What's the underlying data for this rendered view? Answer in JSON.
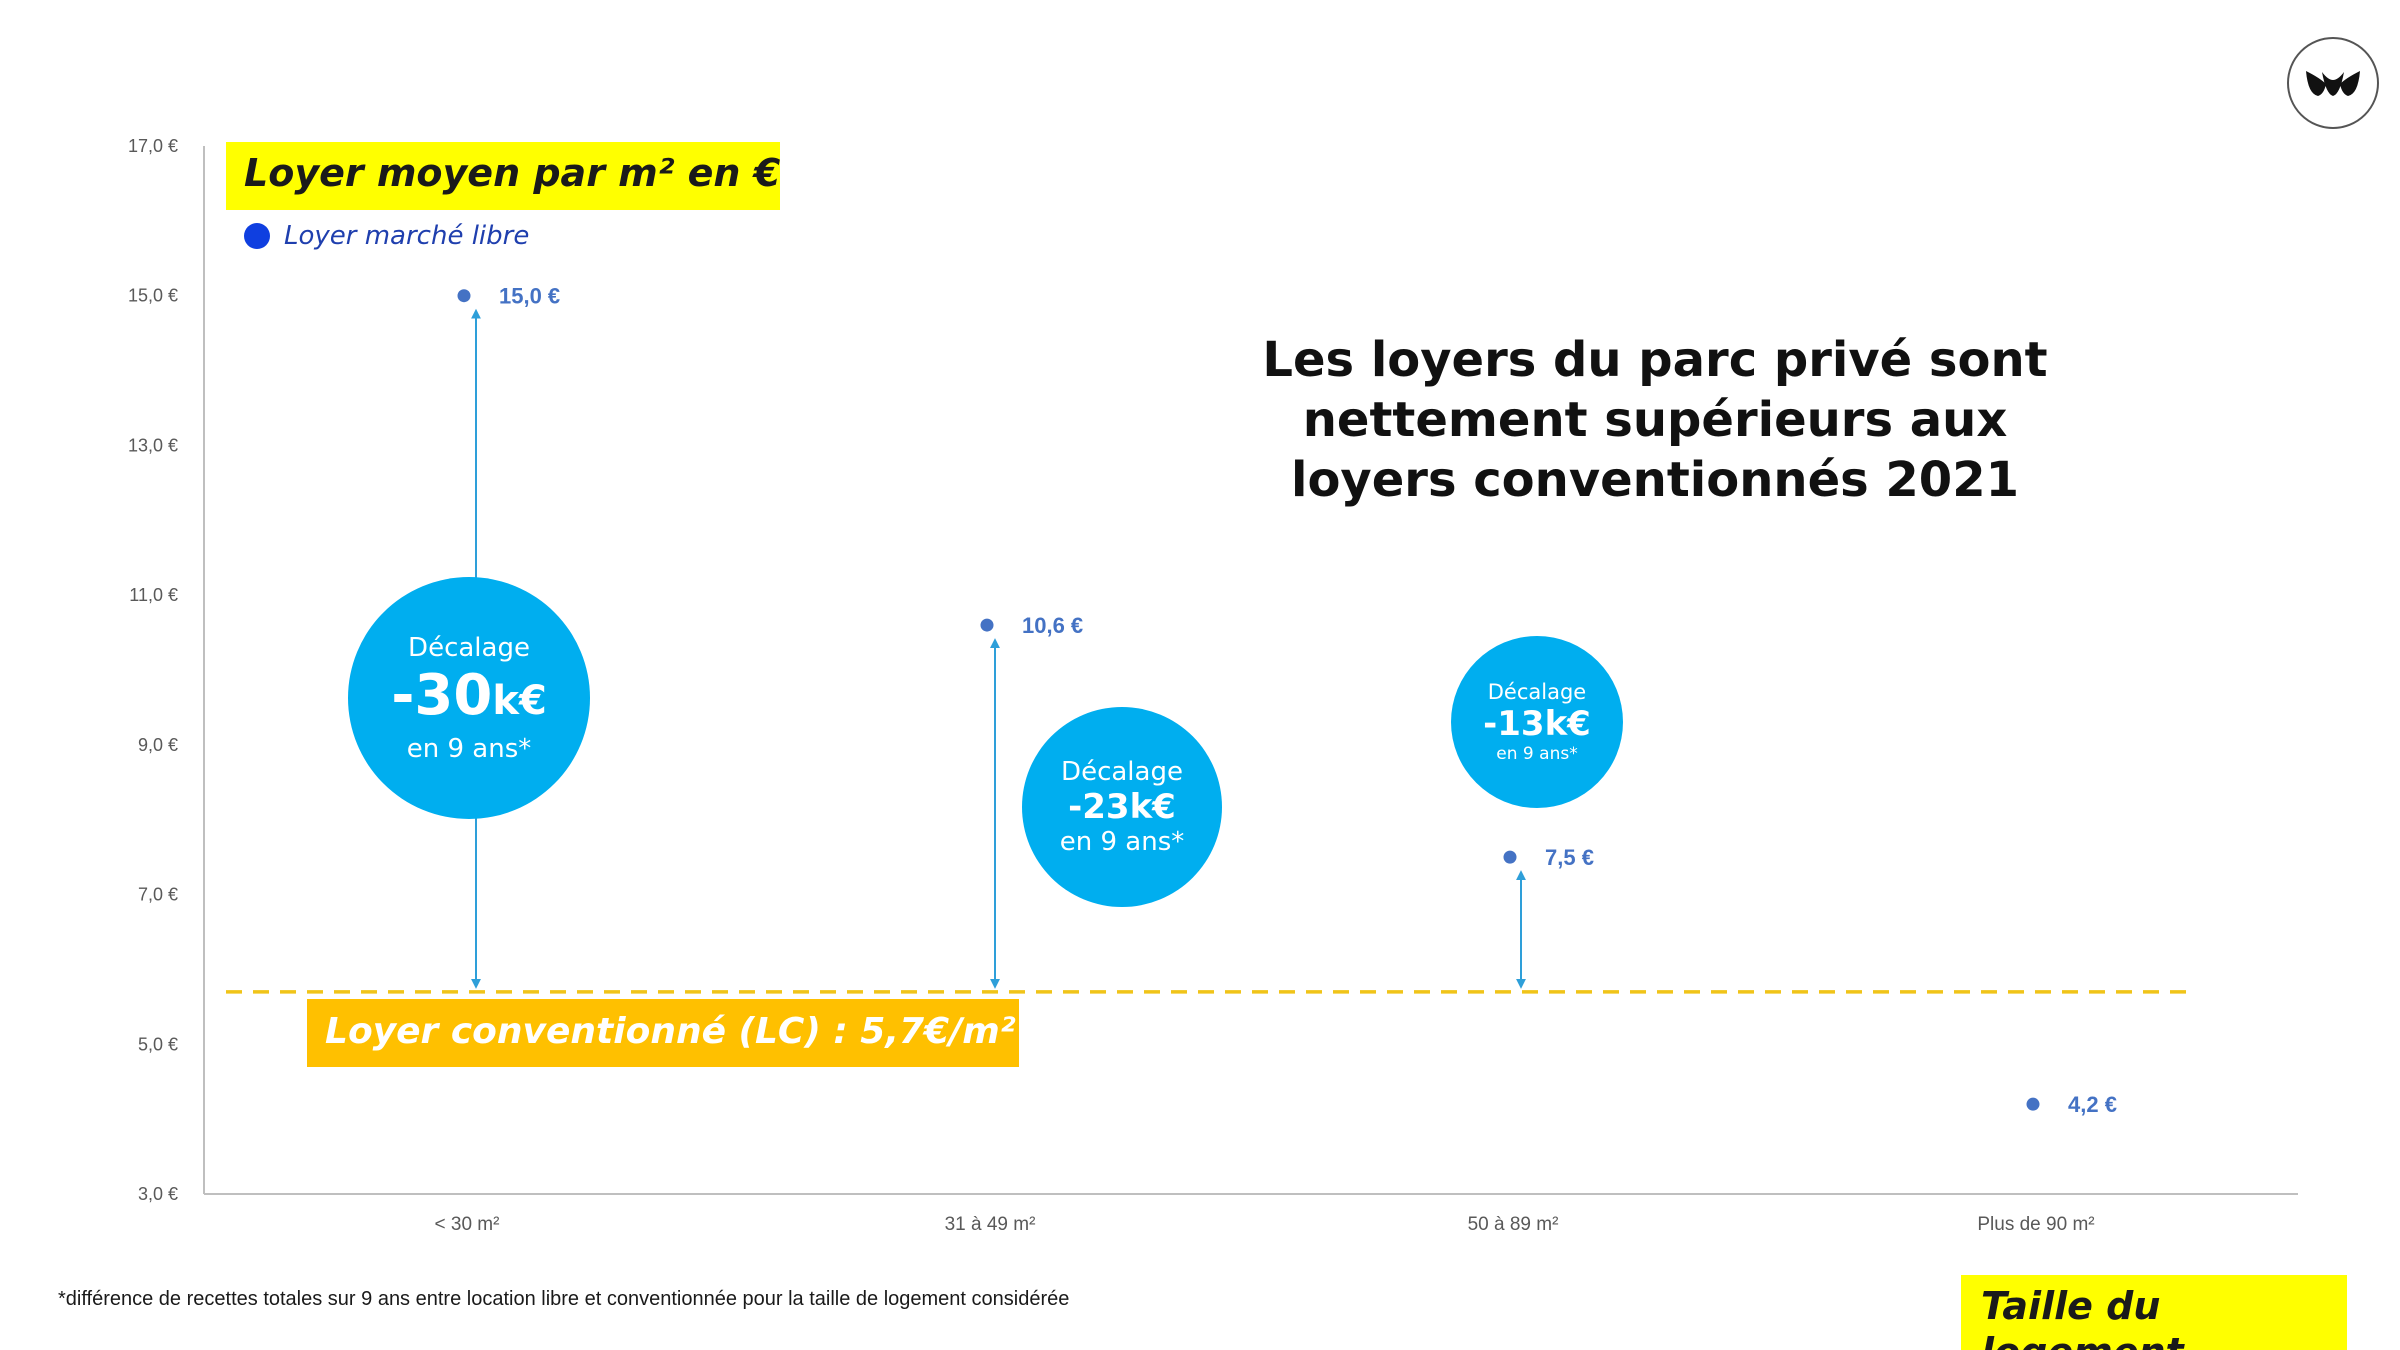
{
  "title": "Les loyers du parc privé sont nettement supérieurs aux loyers conventionnés 2021",
  "title_lines": [
    "Les loyers du parc privé sont",
    "nettement supérieurs aux",
    "loyers conventionnés 2021"
  ],
  "y_axis_box": "Loyer moyen par m² en €",
  "x_axis_box": "Taille du logement",
  "legend": {
    "label": "Loyer marché libre",
    "color": "#0f3fe0"
  },
  "lc_label": "Loyer conventionné (LC) : 5,7€/m²",
  "bubbles": [
    {
      "label": "Décalage",
      "value": "-30",
      "unit": "k€",
      "sub": "en 9 ans*"
    },
    {
      "label": "Décalage",
      "value": "-23k€",
      "sub": "en 9 ans*"
    },
    {
      "label": "Décalage",
      "value": "-13k€",
      "sub": "en 9 ans*"
    }
  ],
  "footnote": "*différence de recettes totales sur 9 ans entre location libre et conventionnée pour la taille de logement considérée",
  "logo": {
    "icon": "tulip-logo-icon"
  },
  "colors": {
    "accent_blue": "#00aeef",
    "point_blue": "#4472c4",
    "lc_orange": "#ffc000",
    "lc_line": "#f0c419",
    "highlight_yellow": "#ffff00"
  },
  "chart_data": {
    "type": "scatter",
    "categories": [
      "< 30 m²",
      "31 à 49 m²",
      "50 à 89 m²",
      "Plus de 90 m²"
    ],
    "series": [
      {
        "name": "Loyer marché libre",
        "values": [
          15.0,
          10.6,
          7.5,
          4.2
        ],
        "labels": [
          "15,0 €",
          "10,6 €",
          "7,5 €",
          "4,2 €"
        ]
      }
    ],
    "reference_line": {
      "name": "Loyer conventionné (LC)",
      "value": 5.7
    },
    "ylim": [
      3.0,
      17.0
    ],
    "yticks": [
      3.0,
      5.0,
      7.0,
      9.0,
      11.0,
      13.0,
      15.0,
      17.0
    ],
    "ytick_labels": [
      "3,0 €",
      "5,0 €",
      "7,0 €",
      "9,0 €",
      "11,0 €",
      "13,0 €",
      "15,0 €",
      "17,0 €"
    ],
    "xlabel": "",
    "ylabel": "",
    "grid": false
  }
}
